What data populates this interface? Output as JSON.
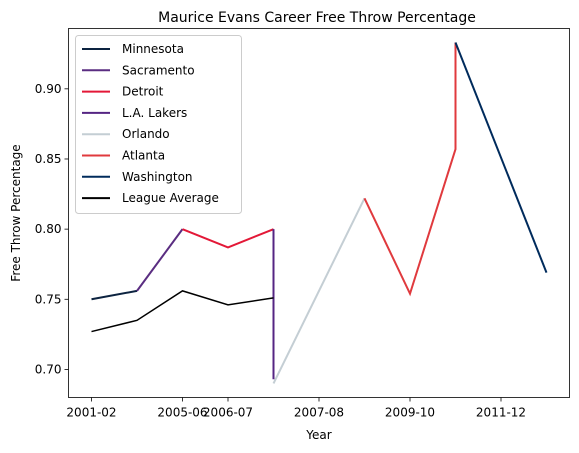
{
  "chart_data": {
    "type": "line",
    "title": "Maurice Evans  Career Free Throw Percentage",
    "xlabel": "Year",
    "ylabel": "Free Throw Percentage",
    "x_ticks": [
      "2001-02",
      "2005-06",
      "2006-07",
      "2007-08",
      "2009-10",
      "2011-12"
    ],
    "y_ticks": [
      "0.70",
      "0.75",
      "0.80",
      "0.85",
      "0.90"
    ],
    "ylim": [
      0.68,
      0.943
    ],
    "grid": false,
    "legend_position": "top-left",
    "seasons": [
      "2001-02",
      "2004-05",
      "2005-06",
      "2006-07",
      "2007-08",
      "2007-08",
      "2008-09",
      "2009-10",
      "2010-11",
      "2010-11",
      "2011-12"
    ],
    "series": [
      {
        "name": "Minnesota",
        "color": "#0C2340",
        "points": [
          {
            "x": "2001-02",
            "y": 0.75
          },
          {
            "x": "2004-05",
            "y": 0.756
          }
        ]
      },
      {
        "name": "Sacramento",
        "color": "#5A2D81",
        "points": [
          {
            "x": "2004-05",
            "y": 0.756
          },
          {
            "x": "2005-06",
            "y": 0.8
          }
        ]
      },
      {
        "name": "Detroit",
        "color": "#E31837",
        "points": [
          {
            "x": "2005-06",
            "y": 0.8
          },
          {
            "x": "2006-07",
            "y": 0.787
          },
          {
            "x": "2007-08",
            "y": 0.8
          }
        ]
      },
      {
        "name": "L.A. Lakers",
        "color": "#552583",
        "points": [
          {
            "x": "2007-08",
            "y": 0.8
          },
          {
            "x": "2007-08",
            "y": 0.693
          }
        ]
      },
      {
        "name": "Orlando",
        "color": "#C4CED4",
        "points": [
          {
            "x": "2007-08",
            "y": 0.69
          },
          {
            "x": "2008-09",
            "y": 0.822
          }
        ]
      },
      {
        "name": "Atlanta",
        "color": "#E03A3E",
        "points": [
          {
            "x": "2008-09",
            "y": 0.822
          },
          {
            "x": "2009-10",
            "y": 0.754
          },
          {
            "x": "2010-11",
            "y": 0.857
          },
          {
            "x": "2010-11",
            "y": 0.933
          }
        ]
      },
      {
        "name": "Washington",
        "color": "#002B5C",
        "points": [
          {
            "x": "2010-11",
            "y": 0.933
          },
          {
            "x": "2011-12",
            "y": 0.769
          }
        ]
      },
      {
        "name": "League Average",
        "color": "#000000",
        "points": [
          {
            "x": "2001-02",
            "y": 0.727
          },
          {
            "x": "2004-05",
            "y": 0.735
          },
          {
            "x": "2005-06",
            "y": 0.756
          },
          {
            "x": "2006-07",
            "y": 0.746
          },
          {
            "x": "2007-08",
            "y": 0.751
          }
        ]
      }
    ]
  }
}
